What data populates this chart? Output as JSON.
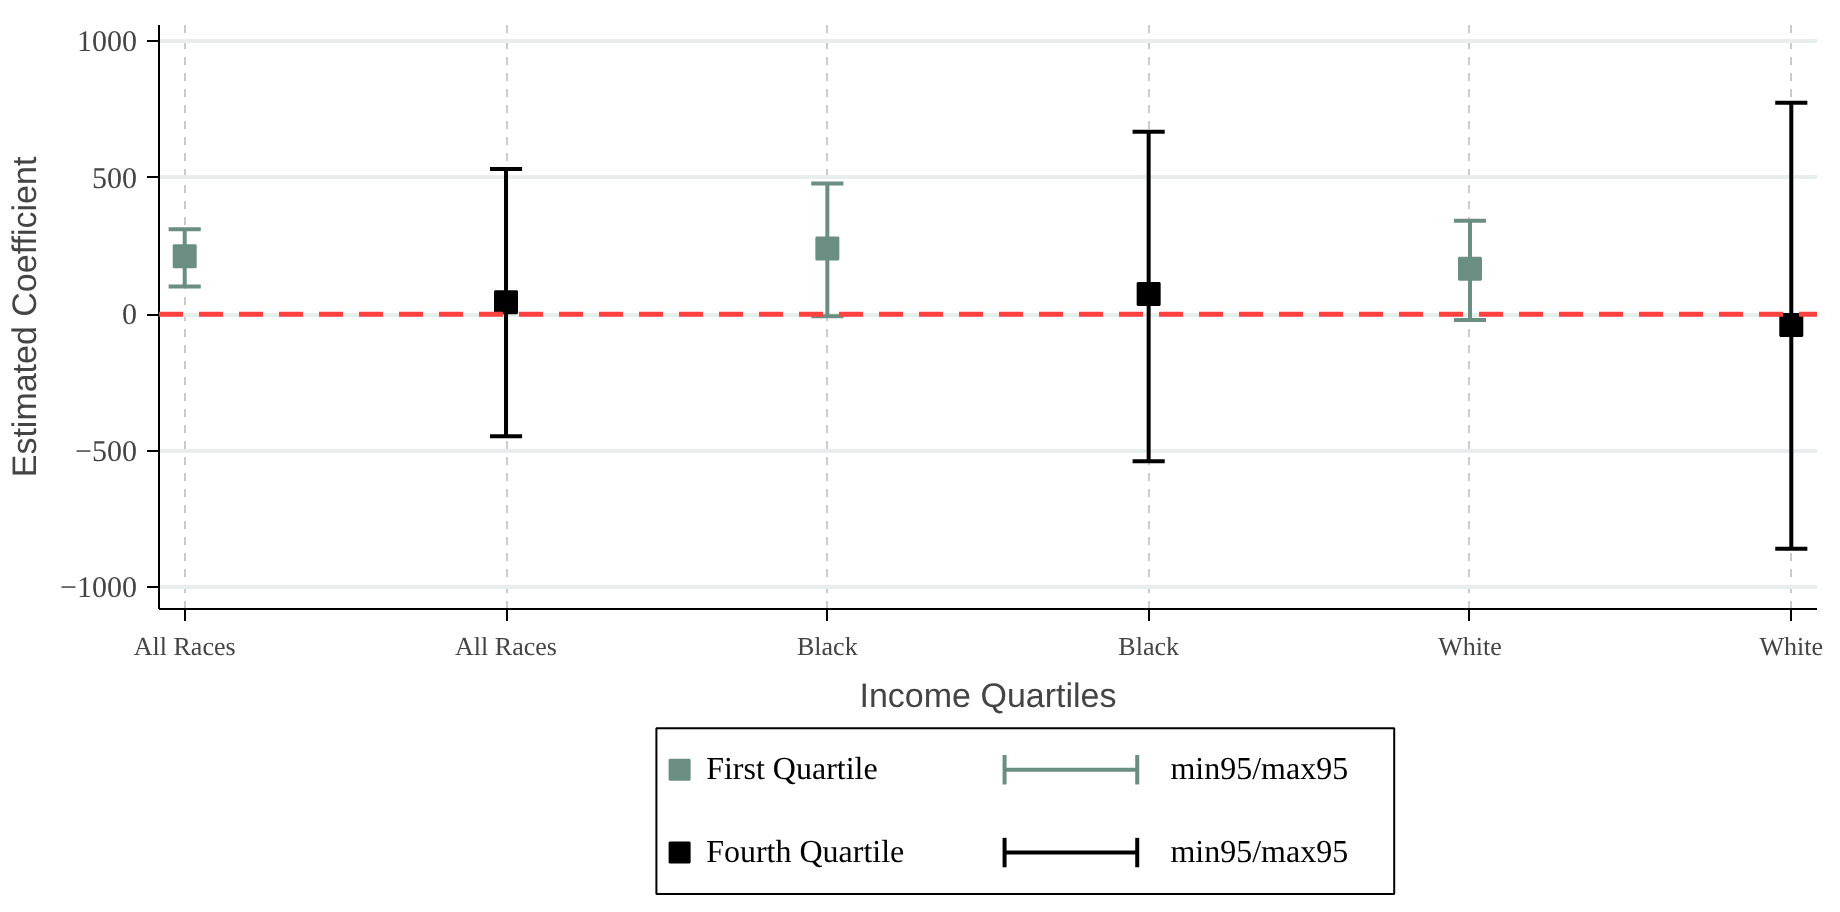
{
  "chart_data": {
    "type": "scatter",
    "xlabel": "Income Quartiles",
    "ylabel": "Estimated Coefficient",
    "categories": [
      "All Races",
      "All Races",
      "Black",
      "Black",
      "White",
      "White"
    ],
    "series": [
      {
        "name": "First Quartile",
        "color": "#6b8e83",
        "values": [
          213,
          null,
          241,
          null,
          167,
          null
        ],
        "errors": [
          [
            102,
            312
          ],
          null,
          [
            -7,
            479
          ],
          null,
          [
            -21,
            343
          ],
          null
        ]
      },
      {
        "name": "Fourth Quartile",
        "color": "#000000",
        "values": [
          null,
          44,
          null,
          74,
          null,
          -39
        ],
        "errors": [
          null,
          [
            -447,
            532
          ],
          null,
          [
            -539,
            669
          ],
          null,
          [
            -859,
            775
          ]
        ]
      }
    ],
    "annotations": [
      "min95/max95",
      "min95/max95"
    ],
    "ylim": [
      -1080,
      1060
    ],
    "yticks": [
      -1000,
      -500,
      0,
      500,
      1000
    ],
    "ref_lines": [
      {
        "axis": "y",
        "value": 0,
        "color": "#ff4040",
        "line_style": "dashed"
      }
    ],
    "marker": "square",
    "grid": true,
    "legend": "bottom"
  }
}
